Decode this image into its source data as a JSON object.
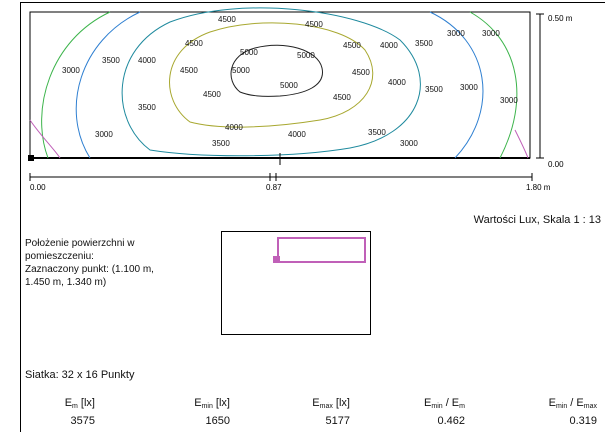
{
  "plot": {
    "contours": [
      {
        "label": "3000",
        "color": "#3cb44b"
      },
      {
        "label": "3500",
        "color": "#2e7fd1"
      },
      {
        "label": "4000",
        "color": "#1f8a9e"
      },
      {
        "label": "4500",
        "color": "#a8a830"
      },
      {
        "label": "5000",
        "color": "#222222"
      }
    ],
    "corner_color": "#c060b8",
    "y_top_label": "0.50 m",
    "y_bottom_label": "0.00",
    "x_labels": [
      "0.00",
      "0.87",
      "1.80 m"
    ]
  },
  "scale_note": "Wartości Lux, Skala 1 : 13",
  "position": {
    "line1": "Położenie powierzchni w",
    "line2": "pomieszczeniu:",
    "line3": "Zaznaczony punkt: (1.100 m,",
    "line4": "1.450 m, 1.340 m)"
  },
  "mini_colors": {
    "outline": "#c060b8"
  },
  "grid_note": "Siatka: 32 x 16 Punkty",
  "stats": {
    "em": {
      "label": "E",
      "sub": "m",
      "unit": " [lx]",
      "value": "3575"
    },
    "emin": {
      "label": "E",
      "sub": "min",
      "unit": " [lx]",
      "value": "1650"
    },
    "emax": {
      "label": "E",
      "sub": "max",
      "unit": " [lx]",
      "value": "5177"
    },
    "ratio1": {
      "a": "E",
      "asub": "min",
      "sep": " / E",
      "bsub": "m",
      "value": "0.462"
    },
    "ratio2": {
      "a": "E",
      "asub": "min",
      "sep": " / E",
      "bsub": "max",
      "value": "0.319"
    }
  }
}
